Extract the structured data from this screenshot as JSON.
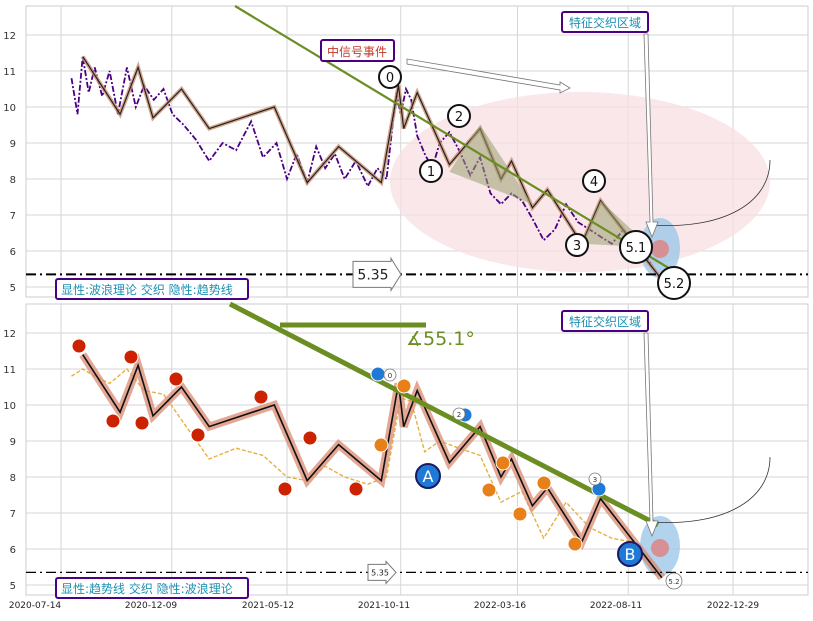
{
  "chart_data": [
    {
      "type": "line",
      "panel": "top",
      "ylim": [
        4.8,
        12.7
      ],
      "y_ticks": [
        "12",
        "11",
        "10",
        "9",
        "8",
        "7",
        "6",
        "5"
      ],
      "x_dates": [
        "2020-07-14",
        "2020-12-09",
        "2021-05-12",
        "2021-10-11",
        "2022-03-16",
        "2022-08-11",
        "2022-12-29"
      ],
      "grid": true,
      "series": [
        {
          "style": "dash-dot purple",
          "x": [
            "2020-07-28",
            "2020-08-05",
            "2020-08-12",
            "2020-08-20",
            "2020-08-28",
            "2020-09-07",
            "2020-09-17",
            "2020-09-28",
            "2020-10-10",
            "2020-10-22",
            "2020-11-02",
            "2020-11-15",
            "2020-11-28",
            "2020-12-10",
            "2020-12-25",
            "2021-01-10",
            "2021-01-28",
            "2021-02-15",
            "2021-03-05",
            "2021-03-25",
            "2021-04-10",
            "2021-04-28",
            "2021-05-12",
            "2021-05-25",
            "2021-06-08",
            "2021-06-20",
            "2021-07-02",
            "2021-07-15",
            "2021-07-28",
            "2021-08-12",
            "2021-08-28",
            "2021-09-10",
            "2021-09-22",
            "2021-10-05",
            "2021-10-11",
            "2021-10-18",
            "2021-10-25",
            "2021-11-02",
            "2021-11-12",
            "2021-11-22",
            "2021-12-02",
            "2021-12-15",
            "2021-12-28",
            "2022-01-12",
            "2022-01-25",
            "2022-02-08",
            "2022-02-22",
            "2022-03-08",
            "2022-03-22",
            "2022-04-05",
            "2022-04-20",
            "2022-05-05",
            "2022-05-20",
            "2022-06-05",
            "2022-06-20",
            "2022-07-05",
            "2022-07-20",
            "2022-08-05",
            "2022-08-15",
            "2022-08-25",
            "2022-09-05",
            "2022-09-12"
          ],
          "y": [
            10.8,
            9.8,
            11.4,
            10.4,
            11.1,
            10.3,
            11.0,
            9.8,
            11.1,
            10.0,
            10.6,
            10.2,
            10.5,
            9.8,
            9.5,
            9.1,
            8.5,
            9.0,
            8.8,
            9.6,
            8.6,
            9.0,
            8.0,
            8.7,
            7.9,
            8.9,
            8.3,
            8.7,
            8.0,
            8.5,
            7.8,
            8.3,
            8.0,
            10.4,
            9.8,
            10.5,
            10.2,
            9.2,
            8.7,
            8.3,
            9.0,
            9.3,
            8.8,
            8.1,
            8.6,
            7.6,
            7.3,
            7.6,
            7.4,
            6.9,
            6.3,
            6.6,
            7.3,
            6.8,
            6.6,
            6.4,
            6.2,
            6.6,
            6.0,
            5.9,
            5.8,
            5.6
          ]
        }
      ],
      "wave_labels": [
        "0",
        "1",
        "2",
        "3",
        "4",
        "5.1",
        "5.2"
      ],
      "annotations": {
        "event": "中信号事件",
        "feature_zone": "特征交织区域",
        "level_value": 5.35,
        "level_label": "5.35",
        "legend": "显性:波浪理论 交织 隐性:趋势线"
      }
    },
    {
      "type": "line",
      "panel": "bottom",
      "ylim": [
        4.8,
        12.7
      ],
      "y_ticks": [
        "12",
        "11",
        "10",
        "9",
        "8",
        "7",
        "6",
        "5"
      ],
      "x_dates": [
        "2020-07-14",
        "2020-12-09",
        "2021-05-12",
        "2021-10-11",
        "2022-03-16",
        "2022-08-11",
        "2022-12-29"
      ],
      "grid": true,
      "series": [
        {
          "style": "dashed orange",
          "x": [
            "2020-07-28",
            "2020-08-12",
            "2020-08-28",
            "2020-09-17",
            "2020-10-10",
            "2020-11-02",
            "2020-11-28",
            "2020-12-25",
            "2021-01-28",
            "2021-03-05",
            "2021-04-10",
            "2021-05-12",
            "2021-06-08",
            "2021-07-02",
            "2021-07-28",
            "2021-08-28",
            "2021-09-22",
            "2021-10-11",
            "2021-10-25",
            "2021-11-12",
            "2021-12-02",
            "2021-12-28",
            "2022-01-25",
            "2022-02-22",
            "2022-03-22",
            "2022-04-20",
            "2022-05-20",
            "2022-06-20",
            "2022-07-20",
            "2022-08-15",
            "2022-09-05",
            "2022-09-12"
          ],
          "y": [
            10.8,
            11.0,
            10.8,
            10.6,
            11.0,
            10.4,
            10.3,
            9.5,
            8.5,
            8.8,
            8.6,
            8.0,
            7.9,
            8.3,
            8.0,
            7.8,
            8.0,
            10.2,
            10.1,
            8.7,
            9.0,
            8.8,
            8.6,
            7.3,
            7.6,
            6.3,
            7.3,
            6.6,
            6.3,
            6.2,
            5.8,
            5.6
          ]
        }
      ],
      "wave_labels": [
        "0",
        "1",
        "2",
        "3",
        "4",
        "A",
        "B",
        "5.2"
      ],
      "annotations": {
        "angle": "∡55.1°",
        "feature_zone": "特征交织区域",
        "level_value": 5.35,
        "level_label": "5.35",
        "legend": "显性:趋势线 交织 隐性:波浪理论"
      }
    }
  ],
  "colors": {
    "purple": "#4b0082",
    "olive": "#6b8e23",
    "zigzag_fill": "#8a8a5a",
    "red_marker": "#cc2200",
    "orange_marker": "#e8801a",
    "blue_marker": "#1e7ad6",
    "zone_pink": "#f7dfe3",
    "zone_blue": "#9fc8e8",
    "legend_text": "#1e90b4",
    "event_text": "#c0392b",
    "angle_text": "#6b8e23"
  }
}
